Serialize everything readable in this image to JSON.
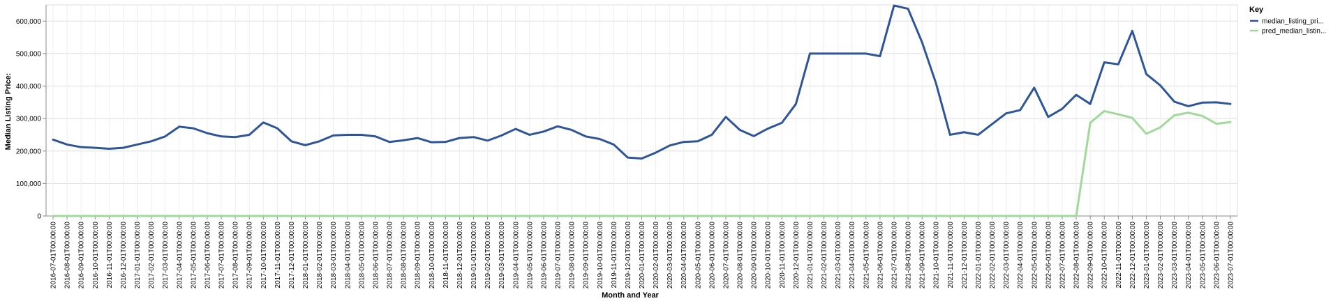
{
  "chart_data": {
    "type": "line",
    "xlabel": "Month and Year",
    "ylabel": "Median Listing Price:",
    "ylim": [
      0,
      650000
    ],
    "yticks": [
      0,
      100000,
      200000,
      300000,
      400000,
      500000,
      600000
    ],
    "ytick_labels": [
      "0",
      "100,000",
      "200,000",
      "300,000",
      "400,000",
      "500,000",
      "600,000"
    ],
    "grid": true,
    "legend": {
      "title": "Key",
      "position": "top-right"
    },
    "categories": [
      "2016-07-01T00:00:00",
      "2016-08-01T00:00:00",
      "2016-09-01T00:00:00",
      "2016-10-01T00:00:00",
      "2016-11-01T00:00:00",
      "2016-12-01T00:00:00",
      "2017-01-01T00:00:00",
      "2017-02-01T00:00:00",
      "2017-03-01T00:00:00",
      "2017-04-01T00:00:00",
      "2017-05-01T00:00:00",
      "2017-06-01T00:00:00",
      "2017-07-01T00:00:00",
      "2017-08-01T00:00:00",
      "2017-09-01T00:00:00",
      "2017-10-01T00:00:00",
      "2017-11-01T00:00:00",
      "2017-12-01T00:00:00",
      "2018-01-01T00:00:00",
      "2018-02-01T00:00:00",
      "2018-03-01T00:00:00",
      "2018-04-01T00:00:00",
      "2018-05-01T00:00:00",
      "2018-06-01T00:00:00",
      "2018-07-01T00:00:00",
      "2018-08-01T00:00:00",
      "2018-09-01T00:00:00",
      "2018-10-01T00:00:00",
      "2018-11-01T00:00:00",
      "2018-12-01T00:00:00",
      "2019-01-01T00:00:00",
      "2019-02-01T00:00:00",
      "2019-03-01T00:00:00",
      "2019-04-01T00:00:00",
      "2019-05-01T00:00:00",
      "2019-06-01T00:00:00",
      "2019-07-01T00:00:00",
      "2019-08-01T00:00:00",
      "2019-09-01T00:00:00",
      "2019-10-01T00:00:00",
      "2019-11-01T00:00:00",
      "2019-12-01T00:00:00",
      "2020-01-01T00:00:00",
      "2020-02-01T00:00:00",
      "2020-03-01T00:00:00",
      "2020-04-01T00:00:00",
      "2020-05-01T00:00:00",
      "2020-06-01T00:00:00",
      "2020-07-01T00:00:00",
      "2020-08-01T00:00:00",
      "2020-09-01T00:00:00",
      "2020-10-01T00:00:00",
      "2020-11-01T00:00:00",
      "2020-12-01T00:00:00",
      "2021-01-01T00:00:00",
      "2021-02-01T00:00:00",
      "2021-03-01T00:00:00",
      "2021-04-01T00:00:00",
      "2021-05-01T00:00:00",
      "2021-06-01T00:00:00",
      "2021-07-01T00:00:00",
      "2021-08-01T00:00:00",
      "2021-09-01T00:00:00",
      "2021-10-01T00:00:00",
      "2021-11-01T00:00:00",
      "2021-12-01T00:00:00",
      "2022-01-01T00:00:00",
      "2022-02-01T00:00:00",
      "2022-03-01T00:00:00",
      "2022-04-01T00:00:00",
      "2022-05-01T00:00:00",
      "2022-06-01T00:00:00",
      "2022-07-01T00:00:00",
      "2022-08-01T00:00:00",
      "2022-09-01T00:00:00",
      "2022-10-01T00:00:00",
      "2022-11-01T00:00:00",
      "2022-12-01T00:00:00",
      "2023-01-01T00:00:00",
      "2023-02-01T00:00:00",
      "2023-03-01T00:00:00",
      "2023-04-01T00:00:00",
      "2023-05-01T00:00:00",
      "2023-06-01T00:00:00",
      "2023-07-01T00:00:00"
    ],
    "series": [
      {
        "name": "median_listing_pri...",
        "color": "#2e5597",
        "values": [
          235000,
          220000,
          212000,
          210000,
          207000,
          210000,
          220000,
          230000,
          245000,
          275000,
          270000,
          255000,
          245000,
          243000,
          250000,
          288000,
          270000,
          230000,
          218000,
          230000,
          248000,
          250000,
          250000,
          245000,
          228000,
          233000,
          240000,
          227000,
          228000,
          240000,
          243000,
          232000,
          248000,
          268000,
          250000,
          260000,
          276000,
          265000,
          245000,
          237000,
          220000,
          180000,
          177000,
          195000,
          217000,
          228000,
          230000,
          250000,
          305000,
          265000,
          246000,
          269000,
          287000,
          345000,
          500000,
          500000,
          500000,
          500000,
          500000,
          492000,
          648000,
          638000,
          535000,
          408000,
          250000,
          258000,
          250000,
          283000,
          316000,
          326000,
          395000,
          305000,
          330000,
          373000,
          345000,
          473000,
          467000,
          570000,
          437000,
          402000,
          352000,
          338000,
          349000,
          350000,
          345000
        ]
      },
      {
        "name": "pred_median_listin...",
        "color": "#a1d99b",
        "values": [
          0,
          0,
          0,
          0,
          0,
          0,
          0,
          0,
          0,
          0,
          0,
          0,
          0,
          0,
          0,
          0,
          0,
          0,
          0,
          0,
          0,
          0,
          0,
          0,
          0,
          0,
          0,
          0,
          0,
          0,
          0,
          0,
          0,
          0,
          0,
          0,
          0,
          0,
          0,
          0,
          0,
          0,
          0,
          0,
          0,
          0,
          0,
          0,
          0,
          0,
          0,
          0,
          0,
          0,
          0,
          0,
          0,
          0,
          0,
          0,
          0,
          0,
          0,
          0,
          0,
          0,
          0,
          0,
          0,
          0,
          0,
          0,
          0,
          0,
          287000,
          323000,
          313000,
          302000,
          253000,
          273000,
          310000,
          318000,
          308000,
          284000,
          289000
        ]
      }
    ]
  }
}
